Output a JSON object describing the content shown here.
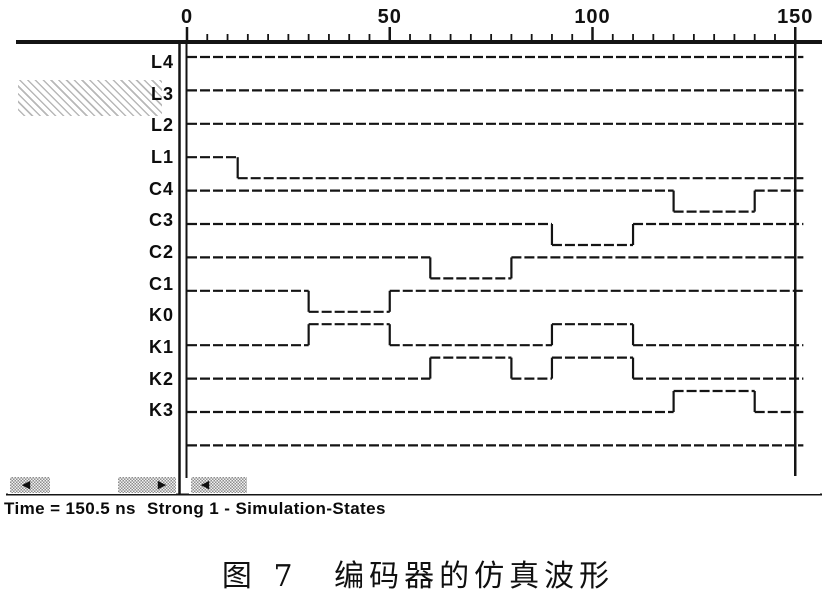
{
  "window": {
    "ruler": {
      "unit": "ns",
      "major_ticks": [
        {
          "t": 0,
          "label": "0"
        },
        {
          "t": 50,
          "label": "50"
        },
        {
          "t": 100,
          "label": "100"
        },
        {
          "t": 150,
          "label": "150"
        }
      ],
      "minor_tick_interval_ns": 5,
      "visible_range_ns": [
        0,
        152
      ]
    },
    "cursor_time_ns": 150,
    "selected_signal": "L3",
    "status": {
      "time_label": "Time = 150.5 ns",
      "state_label": "Strong 1 - Simulation-States"
    },
    "icons": {
      "scroll_left": "◀",
      "scroll_right": "▶"
    }
  },
  "chart_data": {
    "type": "logic-waveform",
    "x_unit": "ns",
    "x_range": [
      0,
      152
    ],
    "levels": {
      "high": 1,
      "low": 0
    },
    "signals": [
      {
        "name": "L4",
        "initial": 1,
        "transitions": []
      },
      {
        "name": "L3",
        "initial": 1,
        "transitions": []
      },
      {
        "name": "L2",
        "initial": 1,
        "transitions": []
      },
      {
        "name": "L1",
        "initial": 1,
        "transitions": [
          12.5
        ]
      },
      {
        "name": "C4",
        "initial": 1,
        "transitions": [
          120,
          140
        ]
      },
      {
        "name": "C3",
        "initial": 1,
        "transitions": [
          90,
          110
        ]
      },
      {
        "name": "C2",
        "initial": 1,
        "transitions": [
          60,
          80
        ]
      },
      {
        "name": "C1",
        "initial": 1,
        "transitions": [
          30,
          50
        ]
      },
      {
        "name": "K0",
        "initial": 0,
        "transitions": [
          30,
          50,
          90,
          110
        ]
      },
      {
        "name": "K1",
        "initial": 0,
        "transitions": [
          60,
          80,
          90,
          110
        ]
      },
      {
        "name": "K2",
        "initial": 0,
        "transitions": [
          120,
          140
        ]
      },
      {
        "name": "K3",
        "initial": 0,
        "transitions": []
      }
    ]
  },
  "caption": {
    "figure_number": "图 7",
    "title": "编码器的仿真波形"
  },
  "colors": {
    "ink": "#141414",
    "paper": "#ffffff"
  }
}
